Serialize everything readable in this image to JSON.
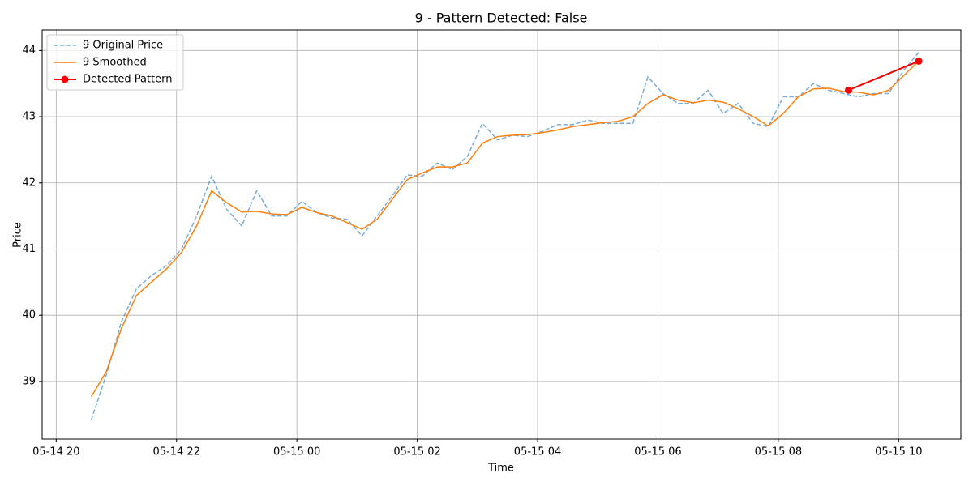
{
  "chart_data": {
    "type": "line",
    "title": "9 - Pattern Detected: False",
    "xlabel": "Time",
    "ylabel": "Price",
    "grid": true,
    "legend": "upper left",
    "xlim": [
      "05-14 19:46",
      "05-15 11:02"
    ],
    "xticks": [
      "05-14 20",
      "05-14 22",
      "05-15 00",
      "05-15 02",
      "05-15 04",
      "05-15 06",
      "05-15 08",
      "05-15 10"
    ],
    "ylim": [
      38.13,
      44.31
    ],
    "yticks": [
      39,
      40,
      41,
      42,
      43,
      44
    ],
    "series": [
      {
        "name": "9 Original Price",
        "color": "#1f77b4",
        "opacity": 0.6,
        "linestyle": "dashed",
        "marker": false,
        "x": [
          "05-14 20:35",
          "05-14 20:50",
          "05-14 21:05",
          "05-14 21:20",
          "05-14 21:35",
          "05-14 21:50",
          "05-14 22:05",
          "05-14 22:20",
          "05-14 22:35",
          "05-14 22:50",
          "05-14 23:05",
          "05-14 23:20",
          "05-14 23:35",
          "05-14 23:50",
          "05-15 00:05",
          "05-15 00:20",
          "05-15 00:35",
          "05-15 00:50",
          "05-15 01:05",
          "05-15 01:20",
          "05-15 01:35",
          "05-15 01:50",
          "05-15 02:05",
          "05-15 02:20",
          "05-15 02:35",
          "05-15 02:50",
          "05-15 03:05",
          "05-15 03:20",
          "05-15 03:35",
          "05-15 03:50",
          "05-15 04:05",
          "05-15 04:20",
          "05-15 04:35",
          "05-15 04:50",
          "05-15 05:05",
          "05-15 05:20",
          "05-15 05:35",
          "05-15 05:50",
          "05-15 06:05",
          "05-15 06:20",
          "05-15 06:35",
          "05-15 06:50",
          "05-15 07:05",
          "05-15 07:20",
          "05-15 07:35",
          "05-15 07:50",
          "05-15 08:05",
          "05-15 08:20",
          "05-15 08:35",
          "05-15 08:50",
          "05-15 09:05",
          "05-15 09:20",
          "05-15 09:35",
          "05-15 09:50",
          "05-15 10:05",
          "05-15 10:20"
        ],
        "values": [
          38.42,
          39.1,
          39.9,
          40.4,
          40.6,
          40.75,
          41.0,
          41.5,
          42.1,
          41.6,
          41.35,
          41.88,
          41.5,
          41.5,
          41.72,
          41.55,
          41.47,
          41.45,
          41.2,
          41.5,
          41.8,
          42.12,
          42.1,
          42.3,
          42.2,
          42.4,
          42.9,
          42.65,
          42.72,
          42.7,
          42.78,
          42.88,
          42.88,
          42.95,
          42.9,
          42.9,
          42.9,
          43.6,
          43.35,
          43.2,
          43.2,
          43.4,
          43.05,
          43.2,
          42.9,
          42.85,
          43.3,
          43.3,
          43.5,
          43.4,
          43.35,
          43.3,
          43.35,
          43.35,
          43.7,
          43.97
        ]
      },
      {
        "name": "9 Smoothed",
        "color": "#ff7f0e",
        "opacity": 1,
        "linestyle": "solid",
        "marker": false,
        "x": [
          "05-14 20:35",
          "05-14 20:50",
          "05-14 21:05",
          "05-14 21:20",
          "05-14 21:35",
          "05-14 21:50",
          "05-14 22:05",
          "05-14 22:20",
          "05-14 22:35",
          "05-14 22:50",
          "05-14 23:05",
          "05-14 23:20",
          "05-14 23:35",
          "05-14 23:50",
          "05-15 00:05",
          "05-15 00:20",
          "05-15 00:35",
          "05-15 00:50",
          "05-15 01:05",
          "05-15 01:20",
          "05-15 01:35",
          "05-15 01:50",
          "05-15 02:05",
          "05-15 02:20",
          "05-15 02:35",
          "05-15 02:50",
          "05-15 03:05",
          "05-15 03:20",
          "05-15 03:35",
          "05-15 03:50",
          "05-15 04:05",
          "05-15 04:20",
          "05-15 04:35",
          "05-15 04:50",
          "05-15 05:05",
          "05-15 05:20",
          "05-15 05:35",
          "05-15 05:50",
          "05-15 06:05",
          "05-15 06:20",
          "05-15 06:35",
          "05-15 06:50",
          "05-15 07:05",
          "05-15 07:20",
          "05-15 07:35",
          "05-15 07:50",
          "05-15 08:05",
          "05-15 08:20",
          "05-15 08:35",
          "05-15 08:50",
          "05-15 09:05",
          "05-15 09:20",
          "05-15 09:35",
          "05-15 09:50",
          "05-15 10:05",
          "05-15 10:20"
        ],
        "values": [
          38.77,
          39.15,
          39.8,
          40.3,
          40.5,
          40.7,
          40.95,
          41.35,
          41.88,
          41.7,
          41.56,
          41.57,
          41.53,
          41.52,
          41.63,
          41.55,
          41.5,
          41.4,
          41.3,
          41.45,
          41.75,
          42.05,
          42.15,
          42.24,
          42.24,
          42.3,
          42.6,
          42.7,
          42.72,
          42.73,
          42.76,
          42.8,
          42.85,
          42.88,
          42.91,
          42.93,
          43.0,
          43.2,
          43.33,
          43.25,
          43.21,
          43.25,
          43.22,
          43.12,
          43.0,
          42.86,
          43.05,
          43.3,
          43.42,
          43.43,
          43.38,
          43.37,
          43.33,
          43.4,
          43.62,
          43.84
        ]
      },
      {
        "name": "Detected Pattern",
        "color": "#ff0000",
        "opacity": 1,
        "linestyle": "solid",
        "marker": true,
        "x": [
          "05-15 09:10",
          "05-15 10:20"
        ],
        "values": [
          43.4,
          43.84
        ]
      }
    ]
  }
}
